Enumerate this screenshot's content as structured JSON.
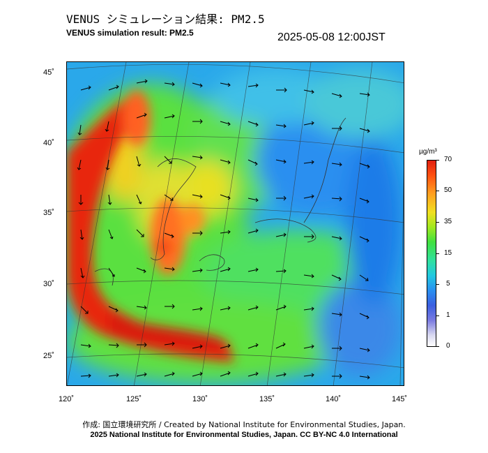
{
  "title_jp": "VENUS シミュレーション結果: PM2.5",
  "title_en": "VENUS simulation result: PM2.5",
  "timestamp": "2025-05-08 12:00JST",
  "map": {
    "lat_labels": [
      "45˚",
      "40˚",
      "35˚",
      "30˚",
      "25˚"
    ],
    "lon_labels": [
      "120˚",
      "125˚",
      "130˚",
      "135˚",
      "140˚",
      "145˚"
    ]
  },
  "colorbar": {
    "unit": "µg/m³",
    "ticks": [
      "70",
      "50",
      "35",
      "15",
      "5",
      "1",
      "0"
    ],
    "colors": {
      "high": "#e02010",
      "orange": "#ffa020",
      "yellow": "#f0e020",
      "green": "#40e040",
      "cyan": "#22c8e0",
      "blue": "#2a8ff0",
      "low": "#ffffff"
    }
  },
  "credit_jp": "作成: 国立環境研究所 / Created by National Institute for Environmental Studies, Japan.",
  "credit_en": "2025 National Institute for Environmental Studies, Japan. CC BY-NC 4.0 International"
}
